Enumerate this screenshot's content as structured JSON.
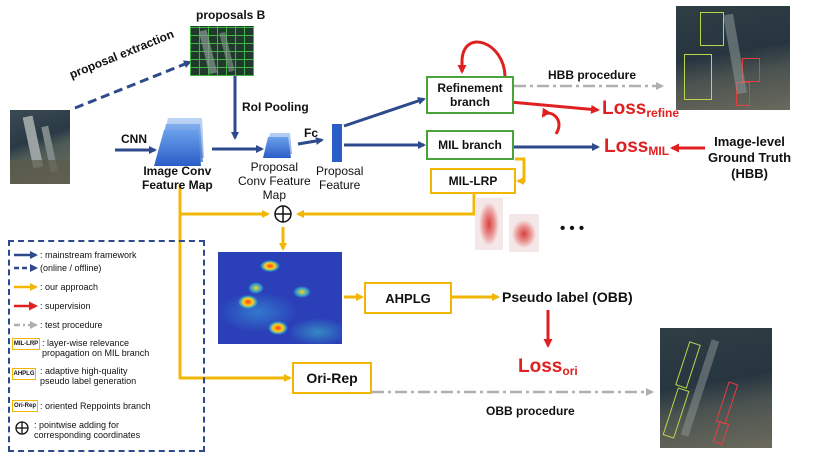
{
  "diagram": {
    "proposals_title": "proposals B",
    "proposal_extraction": "proposal extraction",
    "roi_pooling": "RoI Pooling",
    "cnn": "CNN",
    "fc": "Fc",
    "image_conv_feature_map": [
      "Image Conv",
      "Feature Map"
    ],
    "proposal_conv_feature_map": [
      "Proposal",
      "Conv Feature",
      "Map"
    ],
    "proposal_feature": [
      "Proposal",
      "Feature"
    ],
    "refinement_branch": [
      "Refinement",
      "branch"
    ],
    "mil_branch": "MIL branch",
    "mil_lrp": "MIL-LRP",
    "hbb_procedure": "HBB procedure",
    "loss_refine": {
      "main": "Loss",
      "sub": "refine"
    },
    "loss_mil": {
      "main": "Loss",
      "sub": "MIL"
    },
    "image_level_gt": [
      "Image-level",
      "Ground Truth",
      "(HBB)"
    ],
    "ellipsis": "• • •",
    "oplus": "⊕",
    "ahplg": "AHPLG",
    "pseudo_label": "Pseudo label (OBB)",
    "loss_ori": {
      "main": "Loss",
      "sub": "ori"
    },
    "ori_rep": "Ori-Rep",
    "obb_procedure": "OBB procedure"
  },
  "legend": {
    "items": [
      {
        "text": ": mainstream framework"
      },
      {
        "text": "(online / offline)"
      },
      {
        "text": ": our approach"
      },
      {
        "text": ": supervision"
      },
      {
        "text": ": test procedure"
      },
      {
        "tag": "MIL-LRP",
        "text": ": layer-wise relevance",
        "text2": "propagation on MIL branch"
      },
      {
        "tag": "AHPLG",
        "text": ": adaptive high-quality",
        "text2": "pseudo label generation"
      },
      {
        "tag": "Ori-Rep",
        "text": ": oriented Reppoints branch"
      },
      {
        "symbol": "⊕",
        "text": ": pointwise adding for",
        "text2": "corresponding coordinates"
      }
    ]
  },
  "colors": {
    "mainstream": "#2e4a8c",
    "approach": "#f2b705",
    "supervision": "#e02020",
    "test": "#b0b0b0",
    "green_box": "#4aa33a"
  },
  "icons": [
    "aerial-image",
    "feature-map-stack",
    "heatmap",
    "attention-map"
  ]
}
